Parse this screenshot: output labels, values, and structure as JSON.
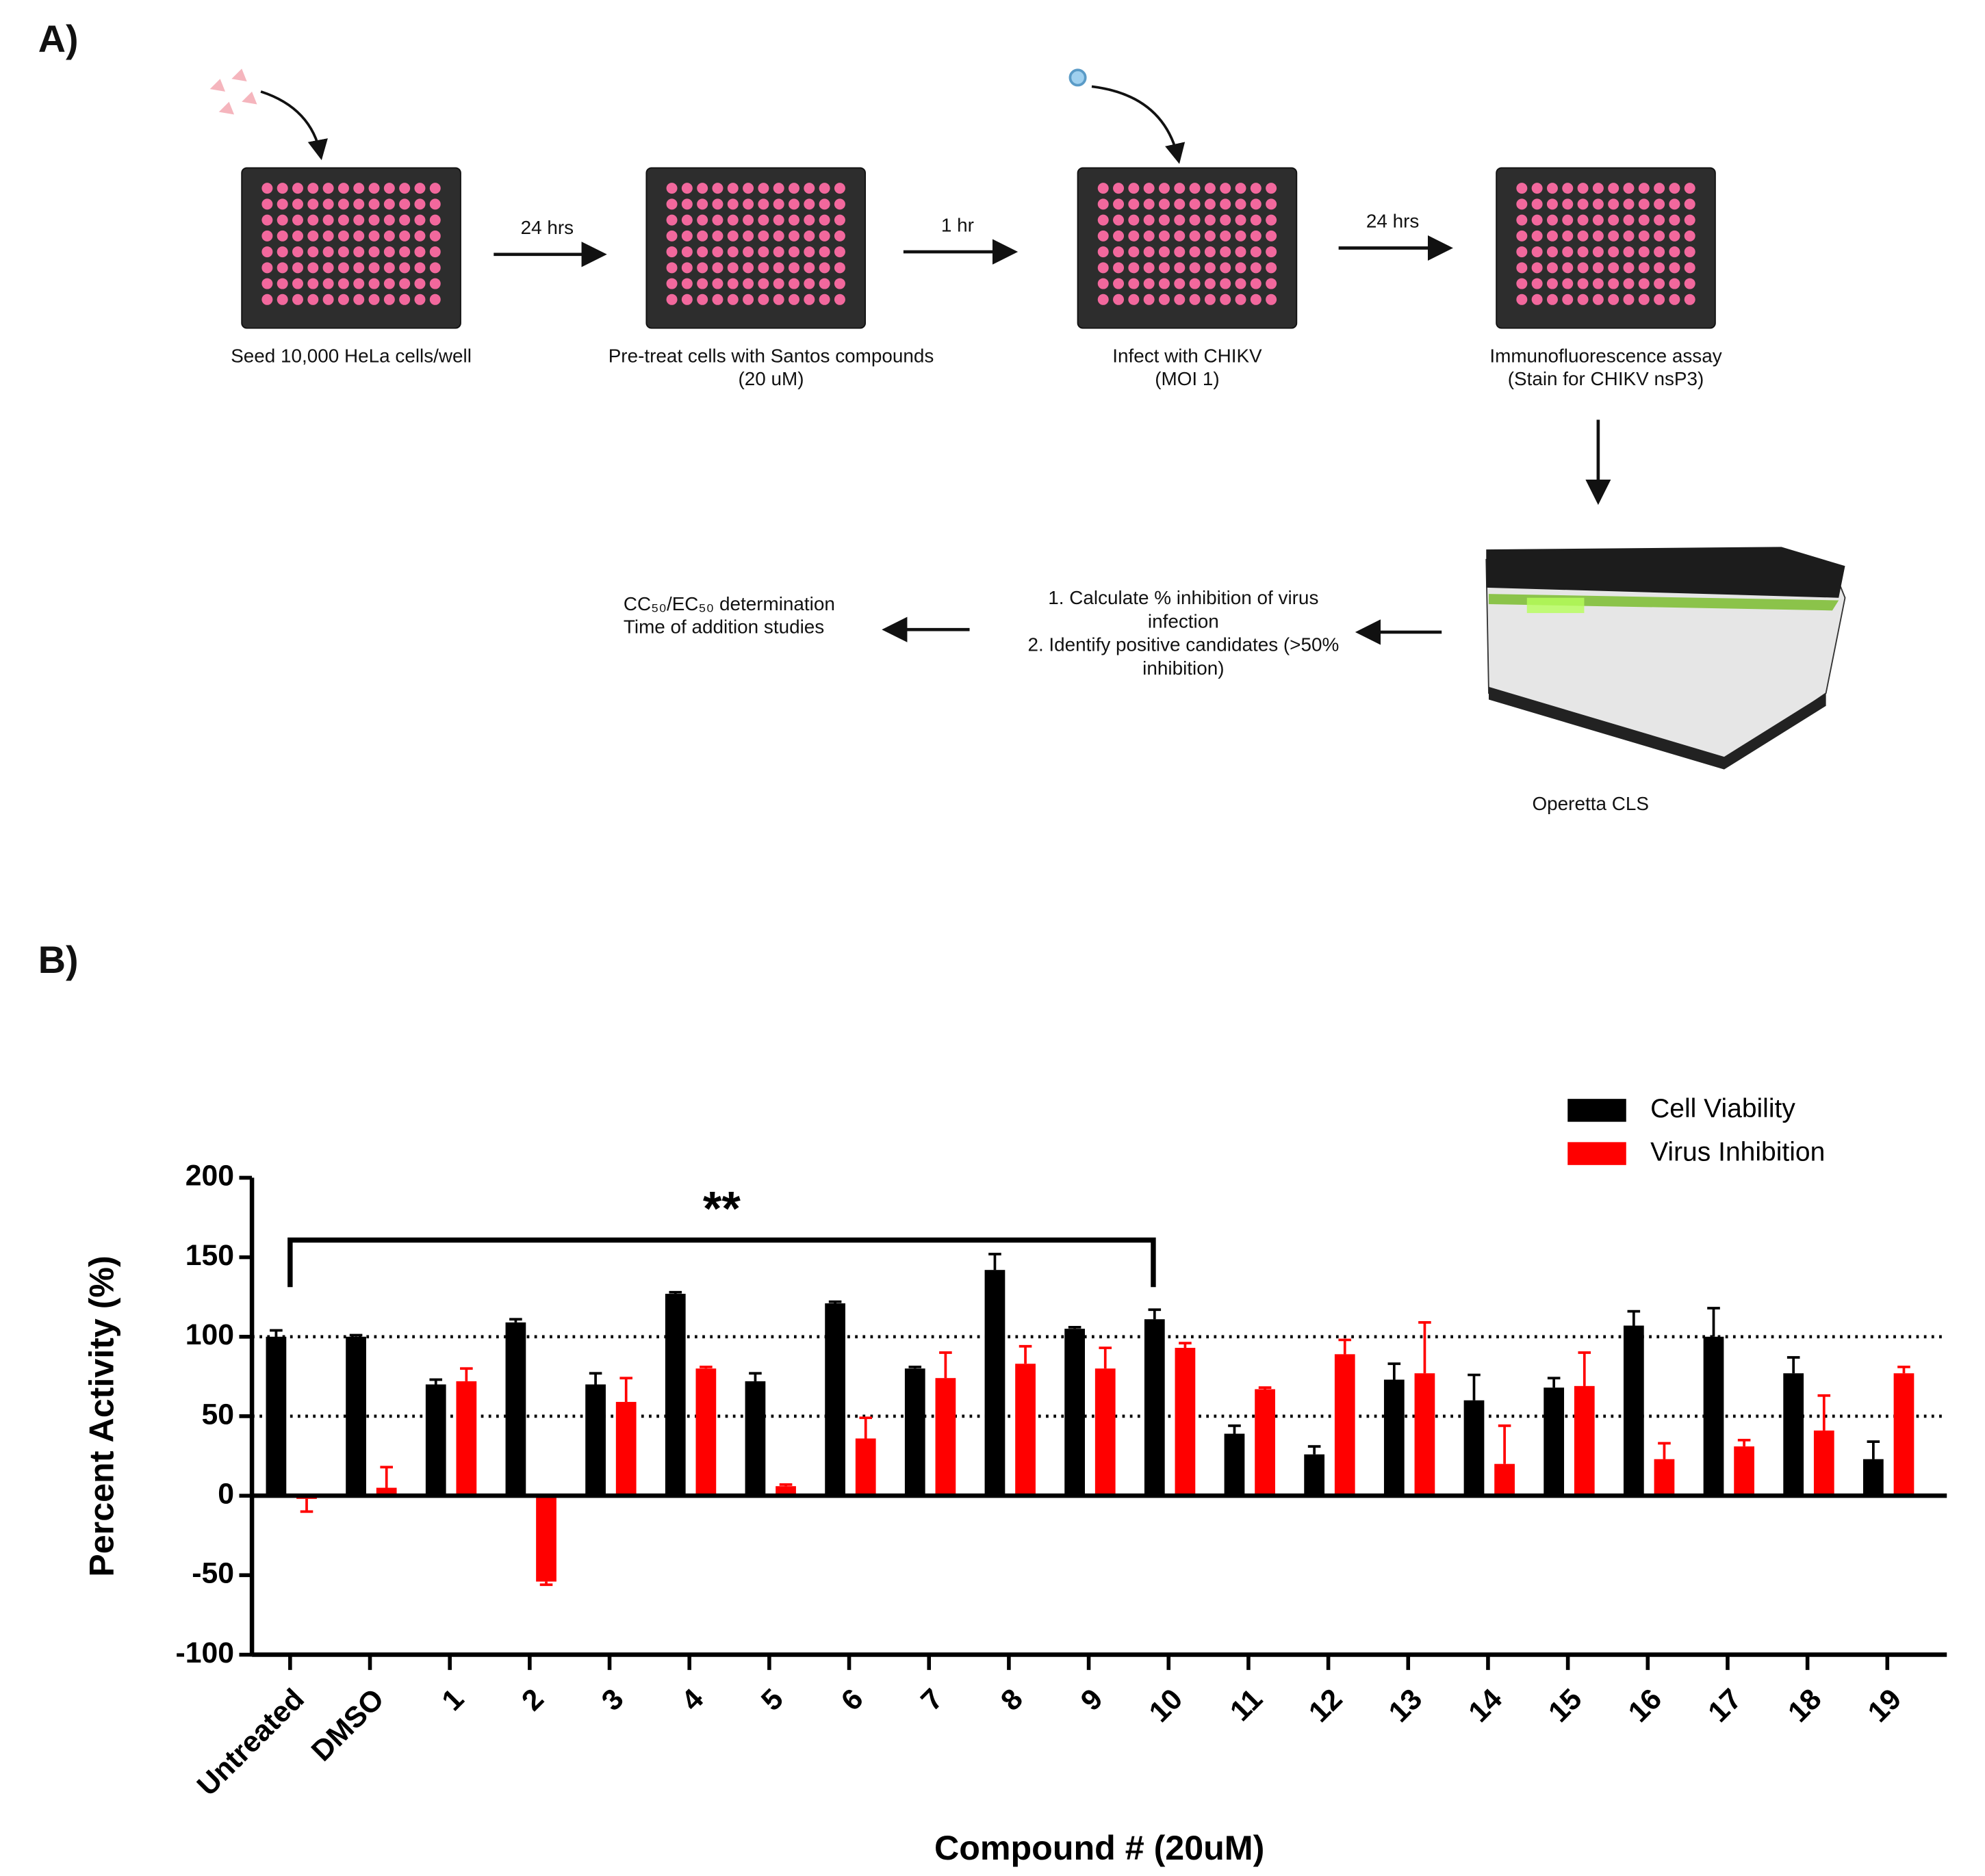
{
  "panel_a": {
    "label": "A)",
    "steps": [
      [
        "Seed 10,000 HeLa cells/well"
      ],
      [
        "Pre-treat cells with Santos compounds",
        "(20 uM)"
      ],
      [
        "Infect with CHIKV",
        "(MOI 1)"
      ],
      [
        "Immunofluorescence assay",
        "(Stain for CHIKV nsP3)"
      ]
    ],
    "arrow_labels": [
      "24 hrs",
      "1 hr",
      "24 hrs"
    ],
    "instrument": "Operetta CLS",
    "analysis": [
      "1. Calculate % inhibition of virus",
      "infection",
      "2. Identify positive candidates (>50%",
      "inhibition)"
    ],
    "followup": [
      "CC₅₀/EC₅₀ determination",
      "Time of addition studies"
    ]
  },
  "chart_data": {
    "type": "bar",
    "panel_label": "B)",
    "y_label": "Percent Activity (%)",
    "x_label": "Compound # (20uM)",
    "categories": [
      "Untreated",
      "DMSO",
      "1",
      "2",
      "3",
      "4",
      "5",
      "6",
      "7",
      "8",
      "9",
      "10",
      "11",
      "12",
      "13",
      "14",
      "15",
      "16",
      "17",
      "18",
      "19"
    ],
    "series": [
      {
        "name": "Cell Viability",
        "color": "#000000",
        "values": [
          100,
          100,
          70,
          109,
          70,
          127,
          72,
          121,
          80,
          142,
          105,
          111,
          39,
          26,
          73,
          60,
          68,
          107,
          100,
          77,
          23
        ],
        "errors": [
          4,
          1,
          3,
          2,
          7,
          1,
          5,
          1,
          1,
          10,
          1,
          6,
          5,
          5,
          10,
          16,
          6,
          9,
          18,
          10,
          11
        ]
      },
      {
        "name": "Virus Inhibition",
        "color": "#ff0000",
        "values": [
          -2,
          5,
          72,
          -54,
          59,
          80,
          6,
          36,
          74,
          83,
          80,
          93,
          67,
          89,
          77,
          20,
          69,
          23,
          31,
          41,
          77
        ],
        "errors": [
          8,
          13,
          8,
          2,
          15,
          1,
          1,
          13,
          16,
          11,
          13,
          3,
          1,
          9,
          32,
          24,
          21,
          10,
          4,
          22,
          4
        ]
      }
    ],
    "ylim": [
      -100,
      200
    ],
    "yticks": [
      -100,
      -50,
      0,
      50,
      100,
      150,
      200
    ],
    "reference_lines": [
      50,
      100
    ],
    "annotations": [
      "**"
    ],
    "legend": "upper right"
  }
}
